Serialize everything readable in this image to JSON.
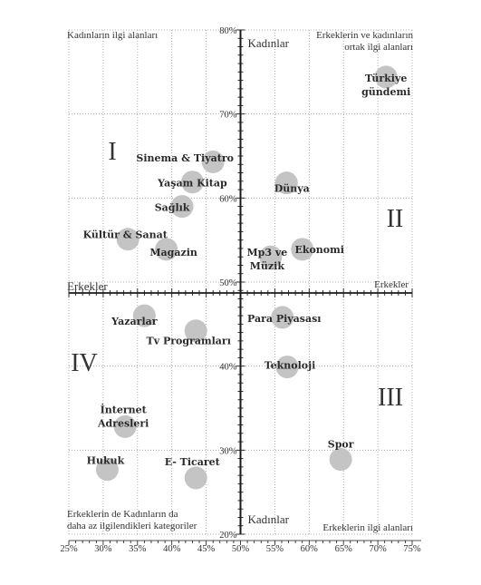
{
  "chart_data": {
    "type": "scatter",
    "x_range": [
      25,
      75
    ],
    "y_range": [
      20,
      80
    ],
    "x_ticks": [
      "25%",
      "30%",
      "35%",
      "40%",
      "45%",
      "50%",
      "55%",
      "60%",
      "65%",
      "70%",
      "75%"
    ],
    "y_ticks": [
      "20%",
      "30%",
      "40%",
      "50%",
      "60%",
      "70%",
      "80%"
    ],
    "axis_labels": {
      "y_top": "Kadınlar",
      "y_bottom": "Kadınlar",
      "x_left": "Erkekler",
      "x_right": "Erkekler"
    },
    "quadrant_labels": [
      "I",
      "II",
      "III",
      "IV"
    ],
    "corner_labels": {
      "top_left": [
        "Kadınların ilgi alanları"
      ],
      "top_right": [
        "Erkeklerin ve kadınların",
        "ortak ilgi alanları"
      ],
      "bottom_left": [
        "Erkeklerin de Kadınların da",
        "daha az ilgilendikleri kategoriler"
      ],
      "bottom_right": [
        "Erkeklerin ilgi alanları"
      ]
    },
    "points": [
      {
        "label": [
          "Türkiye",
          "gündemi"
        ],
        "x": 71.2,
        "y": 74.4
      },
      {
        "label": [
          "Sinema & Tiyatro"
        ],
        "x": 46.0,
        "y": 64.3
      },
      {
        "label": [
          "Dünya"
        ],
        "x": 56.7,
        "y": 61.8
      },
      {
        "label": [
          "Yaşam Kitap"
        ],
        "x": 43.0,
        "y": 61.9
      },
      {
        "label": [
          "Sağlık"
        ],
        "x": 41.5,
        "y": 59.0
      },
      {
        "label": [
          "Kültür & Sanat"
        ],
        "x": 33.6,
        "y": 55.1
      },
      {
        "label": [
          "Magazin"
        ],
        "x": 39.2,
        "y": 53.9
      },
      {
        "label": [
          "Ekonomi"
        ],
        "x": 59.0,
        "y": 53.9
      },
      {
        "label": [
          "Mp3 ve",
          "Müzik"
        ],
        "x": 54.4,
        "y": 53.0
      },
      {
        "label": [
          "Yazarlar"
        ],
        "x": 36.0,
        "y": 46.0
      },
      {
        "label": [
          "Para Piyasası"
        ],
        "x": 56.1,
        "y": 45.8
      },
      {
        "label": [
          "Tv Programları"
        ],
        "x": 43.5,
        "y": 44.2
      },
      {
        "label": [
          "Teknoloji"
        ],
        "x": 56.8,
        "y": 39.9
      },
      {
        "label": [
          "İnternet",
          "Adresleri"
        ],
        "x": 33.2,
        "y": 32.8
      },
      {
        "label": [
          "Spor"
        ],
        "x": 64.6,
        "y": 28.9
      },
      {
        "label": [
          "Hukuk"
        ],
        "x": 30.6,
        "y": 27.7
      },
      {
        "label": [
          "E- Ticaret"
        ],
        "x": 43.5,
        "y": 26.7
      }
    ]
  }
}
